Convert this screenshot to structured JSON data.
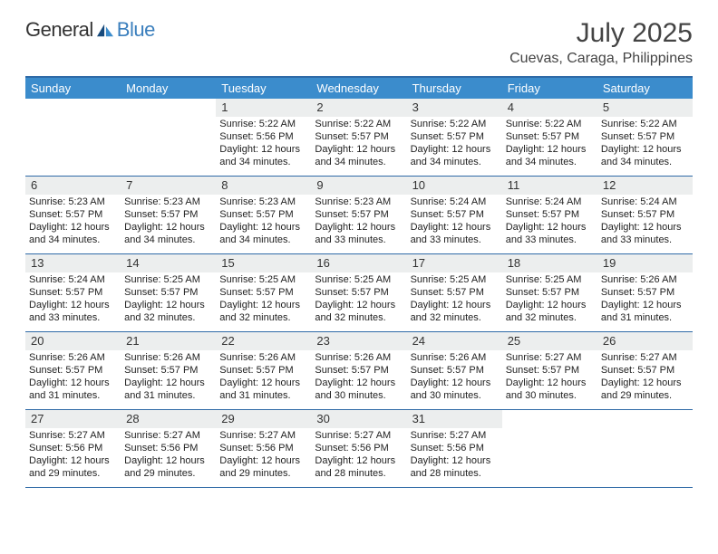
{
  "logo": {
    "word1": "General",
    "word2": "Blue"
  },
  "header": {
    "month_title": "July 2025",
    "location": "Cuevas, Caraga, Philippines"
  },
  "colors": {
    "header_bar": "#3b8ccc",
    "header_border": "#2f6aa7",
    "daynum_bg": "#eceeee",
    "logo_blue": "#3b7fbd",
    "logo_tri_dark": "#174a7c",
    "logo_tri_light": "#3b8ccc"
  },
  "weekdays": [
    "Sunday",
    "Monday",
    "Tuesday",
    "Wednesday",
    "Thursday",
    "Friday",
    "Saturday"
  ],
  "weeks": [
    [
      null,
      null,
      {
        "n": "1",
        "sr": "Sunrise: 5:22 AM",
        "ss": "Sunset: 5:56 PM",
        "dl": "Daylight: 12 hours and 34 minutes."
      },
      {
        "n": "2",
        "sr": "Sunrise: 5:22 AM",
        "ss": "Sunset: 5:57 PM",
        "dl": "Daylight: 12 hours and 34 minutes."
      },
      {
        "n": "3",
        "sr": "Sunrise: 5:22 AM",
        "ss": "Sunset: 5:57 PM",
        "dl": "Daylight: 12 hours and 34 minutes."
      },
      {
        "n": "4",
        "sr": "Sunrise: 5:22 AM",
        "ss": "Sunset: 5:57 PM",
        "dl": "Daylight: 12 hours and 34 minutes."
      },
      {
        "n": "5",
        "sr": "Sunrise: 5:22 AM",
        "ss": "Sunset: 5:57 PM",
        "dl": "Daylight: 12 hours and 34 minutes."
      }
    ],
    [
      {
        "n": "6",
        "sr": "Sunrise: 5:23 AM",
        "ss": "Sunset: 5:57 PM",
        "dl": "Daylight: 12 hours and 34 minutes."
      },
      {
        "n": "7",
        "sr": "Sunrise: 5:23 AM",
        "ss": "Sunset: 5:57 PM",
        "dl": "Daylight: 12 hours and 34 minutes."
      },
      {
        "n": "8",
        "sr": "Sunrise: 5:23 AM",
        "ss": "Sunset: 5:57 PM",
        "dl": "Daylight: 12 hours and 34 minutes."
      },
      {
        "n": "9",
        "sr": "Sunrise: 5:23 AM",
        "ss": "Sunset: 5:57 PM",
        "dl": "Daylight: 12 hours and 33 minutes."
      },
      {
        "n": "10",
        "sr": "Sunrise: 5:24 AM",
        "ss": "Sunset: 5:57 PM",
        "dl": "Daylight: 12 hours and 33 minutes."
      },
      {
        "n": "11",
        "sr": "Sunrise: 5:24 AM",
        "ss": "Sunset: 5:57 PM",
        "dl": "Daylight: 12 hours and 33 minutes."
      },
      {
        "n": "12",
        "sr": "Sunrise: 5:24 AM",
        "ss": "Sunset: 5:57 PM",
        "dl": "Daylight: 12 hours and 33 minutes."
      }
    ],
    [
      {
        "n": "13",
        "sr": "Sunrise: 5:24 AM",
        "ss": "Sunset: 5:57 PM",
        "dl": "Daylight: 12 hours and 33 minutes."
      },
      {
        "n": "14",
        "sr": "Sunrise: 5:25 AM",
        "ss": "Sunset: 5:57 PM",
        "dl": "Daylight: 12 hours and 32 minutes."
      },
      {
        "n": "15",
        "sr": "Sunrise: 5:25 AM",
        "ss": "Sunset: 5:57 PM",
        "dl": "Daylight: 12 hours and 32 minutes."
      },
      {
        "n": "16",
        "sr": "Sunrise: 5:25 AM",
        "ss": "Sunset: 5:57 PM",
        "dl": "Daylight: 12 hours and 32 minutes."
      },
      {
        "n": "17",
        "sr": "Sunrise: 5:25 AM",
        "ss": "Sunset: 5:57 PM",
        "dl": "Daylight: 12 hours and 32 minutes."
      },
      {
        "n": "18",
        "sr": "Sunrise: 5:25 AM",
        "ss": "Sunset: 5:57 PM",
        "dl": "Daylight: 12 hours and 32 minutes."
      },
      {
        "n": "19",
        "sr": "Sunrise: 5:26 AM",
        "ss": "Sunset: 5:57 PM",
        "dl": "Daylight: 12 hours and 31 minutes."
      }
    ],
    [
      {
        "n": "20",
        "sr": "Sunrise: 5:26 AM",
        "ss": "Sunset: 5:57 PM",
        "dl": "Daylight: 12 hours and 31 minutes."
      },
      {
        "n": "21",
        "sr": "Sunrise: 5:26 AM",
        "ss": "Sunset: 5:57 PM",
        "dl": "Daylight: 12 hours and 31 minutes."
      },
      {
        "n": "22",
        "sr": "Sunrise: 5:26 AM",
        "ss": "Sunset: 5:57 PM",
        "dl": "Daylight: 12 hours and 31 minutes."
      },
      {
        "n": "23",
        "sr": "Sunrise: 5:26 AM",
        "ss": "Sunset: 5:57 PM",
        "dl": "Daylight: 12 hours and 30 minutes."
      },
      {
        "n": "24",
        "sr": "Sunrise: 5:26 AM",
        "ss": "Sunset: 5:57 PM",
        "dl": "Daylight: 12 hours and 30 minutes."
      },
      {
        "n": "25",
        "sr": "Sunrise: 5:27 AM",
        "ss": "Sunset: 5:57 PM",
        "dl": "Daylight: 12 hours and 30 minutes."
      },
      {
        "n": "26",
        "sr": "Sunrise: 5:27 AM",
        "ss": "Sunset: 5:57 PM",
        "dl": "Daylight: 12 hours and 29 minutes."
      }
    ],
    [
      {
        "n": "27",
        "sr": "Sunrise: 5:27 AM",
        "ss": "Sunset: 5:56 PM",
        "dl": "Daylight: 12 hours and 29 minutes."
      },
      {
        "n": "28",
        "sr": "Sunrise: 5:27 AM",
        "ss": "Sunset: 5:56 PM",
        "dl": "Daylight: 12 hours and 29 minutes."
      },
      {
        "n": "29",
        "sr": "Sunrise: 5:27 AM",
        "ss": "Sunset: 5:56 PM",
        "dl": "Daylight: 12 hours and 29 minutes."
      },
      {
        "n": "30",
        "sr": "Sunrise: 5:27 AM",
        "ss": "Sunset: 5:56 PM",
        "dl": "Daylight: 12 hours and 28 minutes."
      },
      {
        "n": "31",
        "sr": "Sunrise: 5:27 AM",
        "ss": "Sunset: 5:56 PM",
        "dl": "Daylight: 12 hours and 28 minutes."
      },
      null,
      null
    ]
  ]
}
